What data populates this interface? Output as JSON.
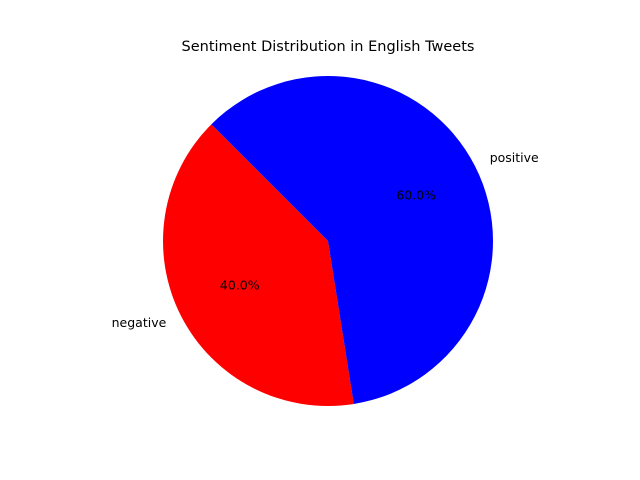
{
  "chart_data": {
    "type": "pie",
    "title": "Sentiment Distribution in English Tweets",
    "categories": [
      "negative",
      "positive"
    ],
    "values": [
      40.0,
      60.0
    ],
    "percent_labels": [
      "40.0%",
      "60.0%"
    ],
    "colors": [
      "#ff0000",
      "#0000ff"
    ],
    "start_angle_deg": 135,
    "direction": "counterclockwise",
    "legend": "none"
  }
}
